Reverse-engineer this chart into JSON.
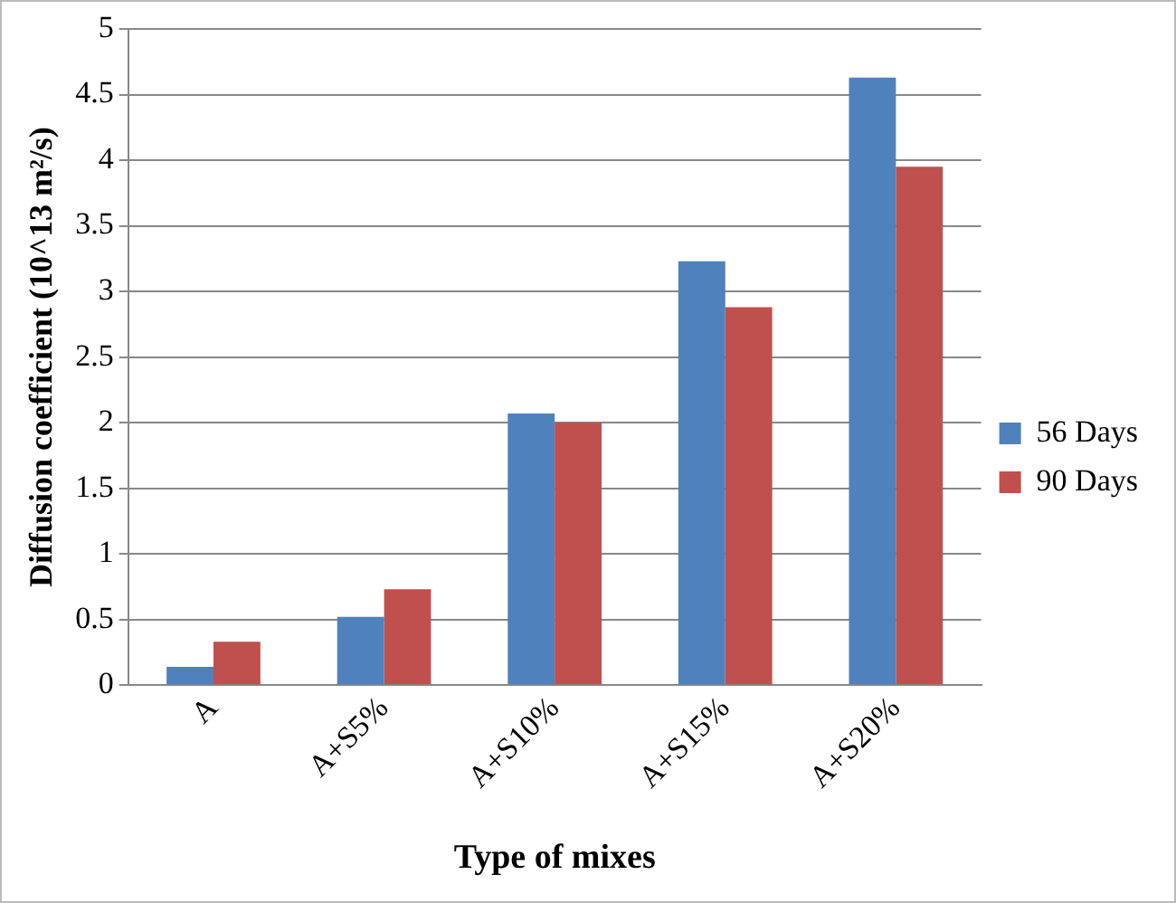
{
  "chart_data": {
    "type": "bar",
    "xlabel": "Type of mixes",
    "ylabel": "Diffusion coefficient (10^13 m²/s)",
    "categories": [
      "A",
      "A+S5%",
      "A+S10%",
      "A+S15%",
      "A+S20%"
    ],
    "series": [
      {
        "name": "56 Days",
        "color": "#4f81bd",
        "values": [
          0.14,
          0.52,
          2.07,
          3.23,
          4.63
        ]
      },
      {
        "name": "90 Days",
        "color": "#c0504d",
        "values": [
          0.33,
          0.73,
          2.0,
          2.88,
          3.95
        ]
      }
    ],
    "ylim": [
      0,
      5
    ],
    "yticks": [
      0,
      0.5,
      1,
      1.5,
      2,
      2.5,
      3,
      3.5,
      4,
      4.5,
      5
    ],
    "grid": "y",
    "legend": "right"
  }
}
